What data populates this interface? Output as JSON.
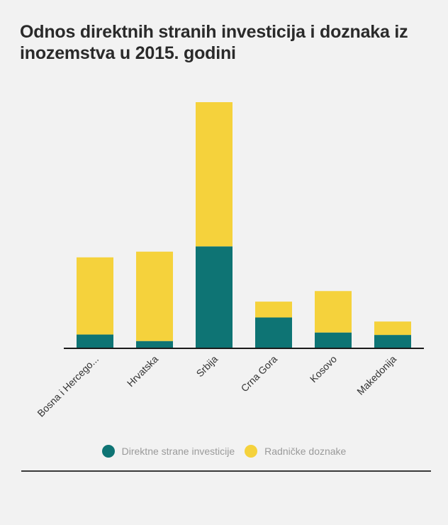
{
  "chart_data": {
    "type": "bar",
    "stacked": true,
    "title": "Odnos direktnih stranih investicija i doznaka iz inozemstva u 2015. godini",
    "categories": [
      "Bosna i Hercego...",
      "Hrvatska",
      "Srbija",
      "Crna Gora",
      "Kosovo",
      "Makedonija"
    ],
    "series": [
      {
        "name": "Direktne strane investicije",
        "color": "#0e7474",
        "values": [
          0.34,
          0.18,
          2.51,
          0.76,
          0.39,
          0.33
        ]
      },
      {
        "name": "Radničke doznake",
        "color": "#f5d23c",
        "values": [
          1.9,
          2.2,
          3.55,
          0.39,
          1.02,
          0.33
        ]
      }
    ],
    "xlabel": "",
    "ylabel": "",
    "ylim": [
      0,
      6.06
    ],
    "grid": false,
    "legend_position": "bottom"
  }
}
